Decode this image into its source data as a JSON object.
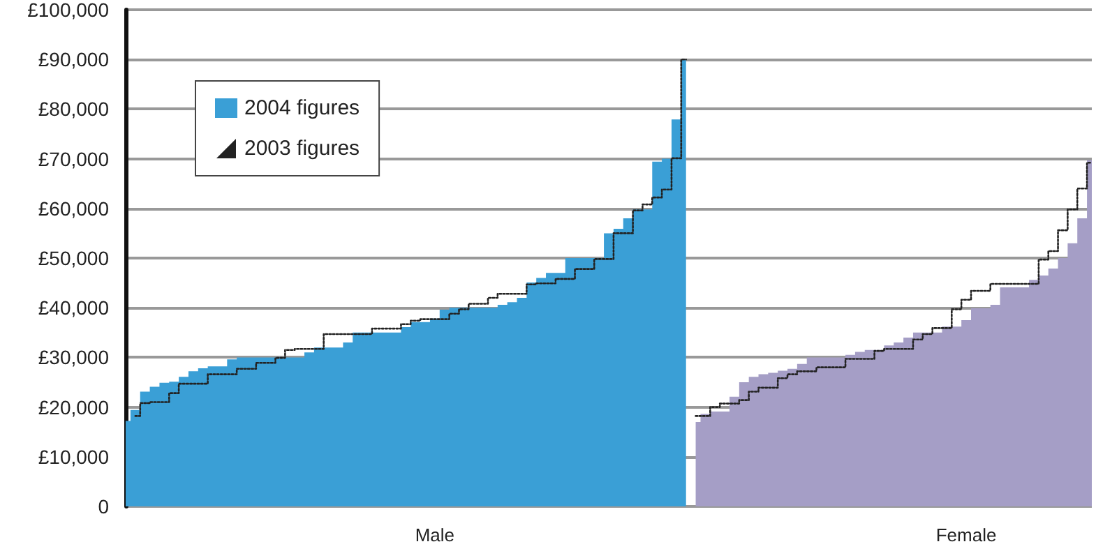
{
  "chart_data": {
    "type": "area",
    "categories": [
      null,
      null,
      null,
      null,
      null,
      null,
      null,
      null,
      null,
      null,
      null,
      null,
      null,
      null,
      null,
      null,
      null,
      null,
      null,
      null,
      null,
      null,
      null,
      null,
      null,
      null,
      null,
      null,
      null,
      null,
      null,
      null,
      "Male",
      null,
      null,
      null,
      null,
      null,
      null,
      null,
      null,
      null,
      null,
      null,
      null,
      null,
      null,
      null,
      null,
      null,
      null,
      null,
      null,
      null,
      null,
      null,
      null,
      null,
      null,
      null,
      null,
      null,
      null,
      null,
      null,
      null,
      null,
      null,
      null,
      null,
      null,
      null,
      null,
      null,
      null,
      null,
      null,
      null,
      null,
      null,
      null,
      null,
      null,
      null,
      null,
      null,
      null,
      "Female",
      null,
      null,
      null,
      null,
      null,
      null,
      null,
      null,
      null,
      null,
      null,
      null,
      null
    ],
    "ylim": [
      0,
      100000
    ],
    "yticks": [
      {
        "value": 0,
        "label": "0"
      },
      {
        "value": 10000,
        "label": "£10,000"
      },
      {
        "value": 20000,
        "label": "£20,000"
      },
      {
        "value": 30000,
        "label": "£30,000"
      },
      {
        "value": 40000,
        "label": "£40,000"
      },
      {
        "value": 50000,
        "label": "£50,000"
      },
      {
        "value": 60000,
        "label": "£60,000"
      },
      {
        "value": 70000,
        "label": "£70,000"
      },
      {
        "value": 80000,
        "label": "£80,000"
      },
      {
        "value": 90000,
        "label": "£90,000"
      },
      {
        "value": 100000,
        "label": "£100,000"
      }
    ],
    "grid": "y",
    "legend": "top left",
    "marker": "none",
    "series": [
      {
        "name": "2004 figures",
        "color": "#3a9fd6",
        "values": [
          17200,
          19400,
          23100,
          24100,
          24900,
          25100,
          26100,
          27200,
          27800,
          28200,
          28200,
          29600,
          30000,
          30000,
          30000,
          30000,
          30000,
          30000,
          30000,
          31000,
          32000,
          32000,
          32000,
          33000,
          35000,
          35000,
          35000,
          35000,
          35000,
          36100,
          37100,
          37100,
          37800,
          39600,
          40000,
          40000,
          40000,
          40000,
          40000,
          40600,
          41100,
          42000,
          45100,
          46000,
          47000,
          47000,
          50000,
          50000,
          50000,
          50000,
          55000,
          55900,
          58000,
          59800,
          59800,
          69400,
          70000,
          77900,
          90000,
          null,
          null,
          null,
          null,
          null,
          null,
          null,
          null,
          null,
          null,
          null,
          null,
          null,
          null,
          null,
          null,
          null,
          null,
          null,
          null,
          null,
          null,
          null,
          null,
          null,
          null,
          null,
          null,
          null,
          null,
          null,
          null,
          null,
          null,
          null,
          null,
          null,
          null,
          null,
          null,
          null,
          null
        ]
      },
      {
        "color": "#a59ec6",
        "values": [
          null,
          null,
          null,
          null,
          null,
          null,
          null,
          null,
          null,
          null,
          null,
          null,
          null,
          null,
          null,
          null,
          null,
          null,
          null,
          null,
          null,
          null,
          null,
          null,
          null,
          null,
          null,
          null,
          null,
          null,
          null,
          null,
          null,
          null,
          null,
          null,
          null,
          null,
          null,
          null,
          null,
          null,
          null,
          null,
          null,
          null,
          null,
          null,
          null,
          null,
          null,
          null,
          null,
          null,
          null,
          null,
          null,
          null,
          null,
          17000,
          18600,
          19100,
          19100,
          22100,
          25000,
          26100,
          26600,
          26900,
          27300,
          27700,
          28700,
          30000,
          30000,
          30000,
          30000,
          30500,
          31100,
          31500,
          31500,
          32400,
          33000,
          34000,
          35000,
          35000,
          35000,
          36200,
          36200,
          37500,
          39900,
          39900,
          40600,
          44100,
          44100,
          44100,
          45600,
          46500,
          47900,
          50000,
          53000,
          58000,
          69700
        ]
      },
      {
        "name": "2003 figures",
        "type": "step",
        "line_style": "dotted",
        "color": "#222222",
        "values": [
          null,
          18200,
          20800,
          21000,
          21000,
          22800,
          24700,
          24700,
          24700,
          26600,
          26600,
          26600,
          27700,
          27700,
          28900,
          28900,
          29900,
          31500,
          31700,
          31700,
          31700,
          34700,
          34700,
          34700,
          34700,
          34700,
          35800,
          35800,
          35800,
          36700,
          37400,
          37700,
          37700,
          37700,
          38800,
          39700,
          40800,
          40800,
          42000,
          42800,
          42800,
          42800,
          44700,
          44900,
          44900,
          45800,
          45800,
          47800,
          47800,
          49800,
          49800,
          55000,
          55000,
          59600,
          60800,
          62200,
          63800,
          70100,
          90000,
          null,
          null,
          null,
          null,
          null,
          null,
          null,
          null,
          null,
          null,
          null,
          null,
          null,
          null,
          null,
          null,
          null,
          null,
          null,
          null,
          null,
          null,
          null,
          null,
          null,
          null,
          null,
          null,
          null,
          null,
          null,
          null,
          null,
          null,
          null,
          null,
          null,
          null,
          null,
          null,
          null,
          null
        ]
      },
      {
        "type": "step",
        "line_style": "dotted",
        "color": "#222222",
        "values": [
          null,
          null,
          null,
          null,
          null,
          null,
          null,
          null,
          null,
          null,
          null,
          null,
          null,
          null,
          null,
          null,
          null,
          null,
          null,
          null,
          null,
          null,
          null,
          null,
          null,
          null,
          null,
          null,
          null,
          null,
          null,
          null,
          null,
          null,
          null,
          null,
          null,
          null,
          null,
          null,
          null,
          null,
          null,
          null,
          null,
          null,
          null,
          null,
          null,
          null,
          null,
          null,
          null,
          null,
          null,
          null,
          null,
          null,
          null,
          18200,
          18200,
          20000,
          20700,
          20700,
          21400,
          23100,
          23900,
          23900,
          25800,
          26600,
          27200,
          27200,
          28000,
          28000,
          28000,
          29700,
          29700,
          29700,
          31300,
          31700,
          31700,
          31700,
          33600,
          34700,
          35900,
          35900,
          39700,
          41600,
          43400,
          43400,
          44800,
          44800,
          44800,
          44800,
          44800,
          49700,
          51400,
          55600,
          59800,
          64000,
          69200
        ]
      }
    ]
  }
}
